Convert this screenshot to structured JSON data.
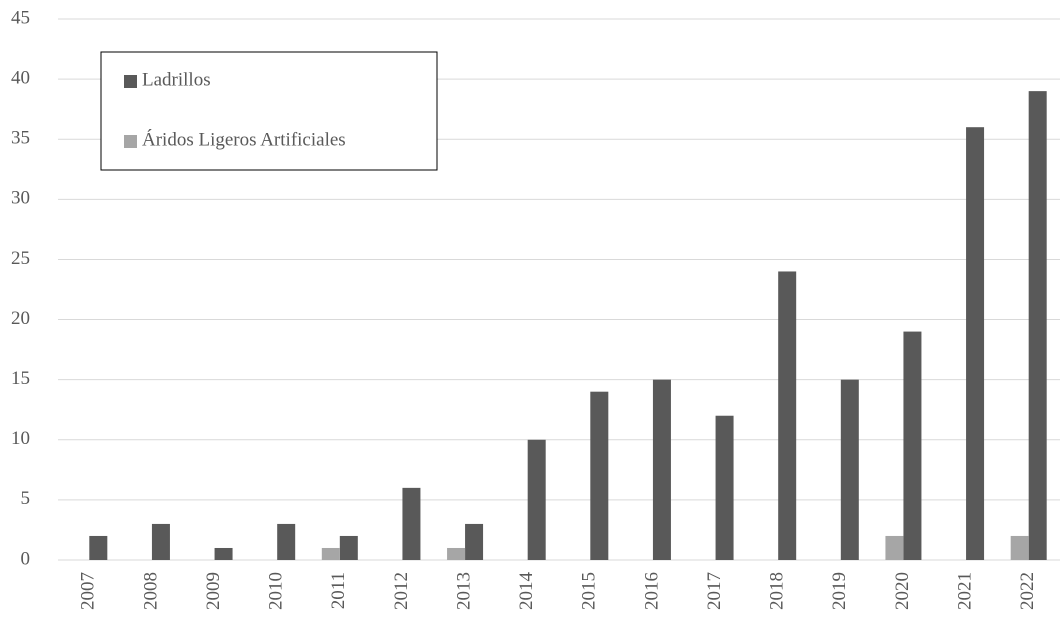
{
  "chart_data": {
    "type": "bar",
    "categories": [
      "2007",
      "2008",
      "2009",
      "2010",
      "2011",
      "2012",
      "2013",
      "2014",
      "2015",
      "2016",
      "2017",
      "2018",
      "2019",
      "2020",
      "2021",
      "2022"
    ],
    "series": [
      {
        "name": "Ladrillos",
        "color": "#595959",
        "values": [
          2,
          3,
          1,
          3,
          2,
          6,
          3,
          10,
          14,
          15,
          12,
          24,
          15,
          19,
          36,
          39
        ]
      },
      {
        "name": "Áridos Ligeros Artificiales",
        "color": "#a6a6a6",
        "values": [
          0,
          0,
          0,
          0,
          1,
          0,
          1,
          0,
          0,
          0,
          0,
          0,
          0,
          2,
          0,
          2
        ]
      }
    ],
    "ylim": [
      0,
      45
    ],
    "yticks": [
      0,
      5,
      10,
      15,
      20,
      25,
      30,
      35,
      40,
      45
    ],
    "grid": true,
    "legend": "upper left"
  }
}
